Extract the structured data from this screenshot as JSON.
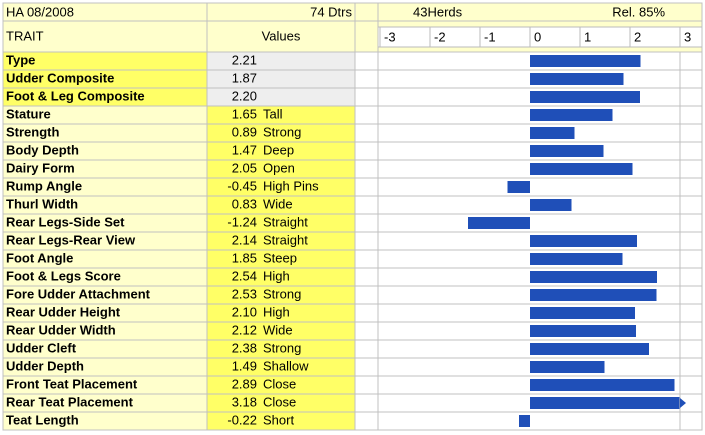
{
  "chart_data": {
    "type": "bar",
    "orientation": "horizontal",
    "header": {
      "evaluation": "HA 08/2008",
      "daughters": "74 Dtrs",
      "herds": "43Herds",
      "reliability": "Rel. 85%",
      "trait_column": "TRAIT",
      "values_column": "Values"
    },
    "categories": [
      "Type",
      "Udder Composite",
      "Foot & Leg Composite",
      "Stature",
      "Strength",
      "Body Depth",
      "Dairy Form",
      "Rump Angle",
      "Thurl Width",
      "Rear Legs-Side Set",
      "Rear Legs-Rear View",
      "Foot Angle",
      "Foot & Legs Score",
      "Fore Udder Attachment",
      "Rear Udder Height",
      "Rear Udder Width",
      "Udder Cleft",
      "Udder Depth",
      "Front Teat Placement",
      "Rear Teat Placement",
      "Teat Length"
    ],
    "values": [
      2.21,
      1.87,
      2.2,
      1.65,
      0.89,
      1.47,
      2.05,
      -0.45,
      0.83,
      -1.24,
      2.14,
      1.85,
      2.54,
      2.53,
      2.1,
      2.12,
      2.38,
      1.49,
      2.89,
      3.18,
      -0.22
    ],
    "value_labels": [
      "2.21",
      "1.87",
      "2.20",
      "1.65",
      "0.89",
      "1.47",
      "2.05",
      "-0.45",
      "0.83",
      "-1.24",
      "2.14",
      "1.85",
      "2.54",
      "2.53",
      "2.10",
      "2.12",
      "2.38",
      "1.49",
      "2.89",
      "3.18",
      "-0.22"
    ],
    "descriptors": [
      null,
      null,
      null,
      "Tall",
      "Strong",
      "Deep",
      "Open",
      "High Pins",
      "Wide",
      "Straight",
      "Straight",
      "Steep",
      "High",
      "Strong",
      "High",
      "Wide",
      "Strong",
      "Shallow",
      "Close",
      "Close",
      "Short"
    ],
    "composite_count": 3,
    "xlim": [
      -3,
      3
    ],
    "xticks": [
      -3,
      -2,
      -1,
      0,
      1,
      2,
      3
    ],
    "color": "#1f4fb8",
    "grid": false
  }
}
